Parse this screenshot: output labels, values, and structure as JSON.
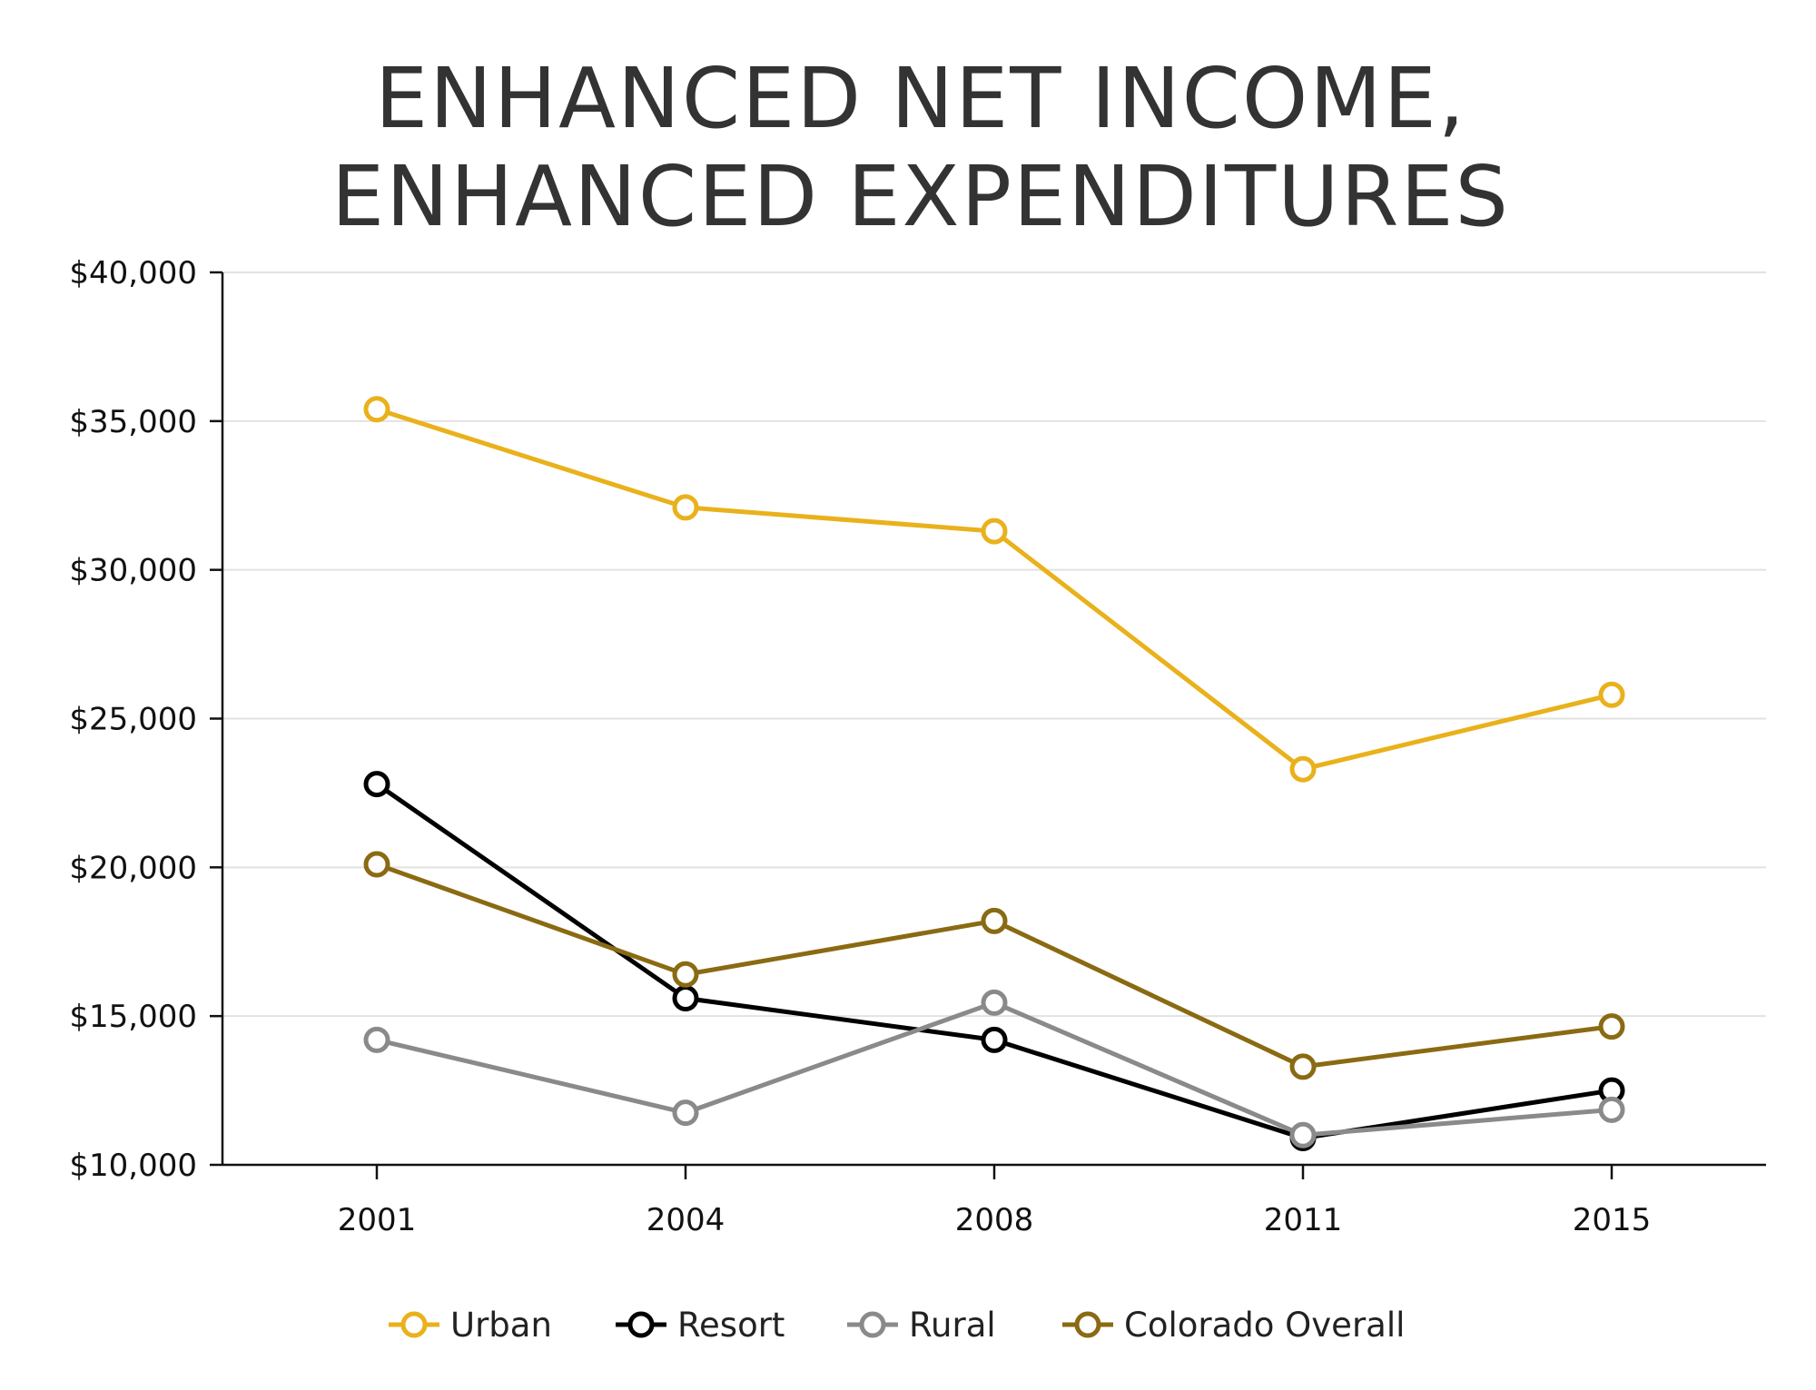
{
  "chart_data": {
    "type": "line",
    "title": [
      "ENHANCED NET INCOME,",
      "ENHANCED EXPENDITURES"
    ],
    "xlabel": "",
    "ylabel": "",
    "categories": [
      "2001",
      "2004",
      "2008",
      "2011",
      "2015"
    ],
    "ylim": [
      10000,
      40000
    ],
    "yticks": [
      10000,
      15000,
      20000,
      25000,
      30000,
      35000,
      40000
    ],
    "ytick_labels": [
      "$10,000",
      "$15,000",
      "$20,000",
      "$25,000",
      "$30,000",
      "$35,000",
      "$40,000"
    ],
    "grid": true,
    "legend_position": "bottom",
    "series": [
      {
        "name": "Urban",
        "color": "#E9B11B",
        "values": [
          35400,
          32100,
          31300,
          23300,
          25800
        ]
      },
      {
        "name": "Resort",
        "color": "#000000",
        "values": [
          22800,
          15600,
          14200,
          10900,
          12500
        ]
      },
      {
        "name": "Rural",
        "color": "#8A8A8A",
        "values": [
          14200,
          11750,
          15450,
          11000,
          11850
        ]
      },
      {
        "name": "Colorado Overall",
        "color": "#8A6A12",
        "values": [
          20100,
          16400,
          18200,
          13300,
          14650
        ]
      }
    ]
  }
}
